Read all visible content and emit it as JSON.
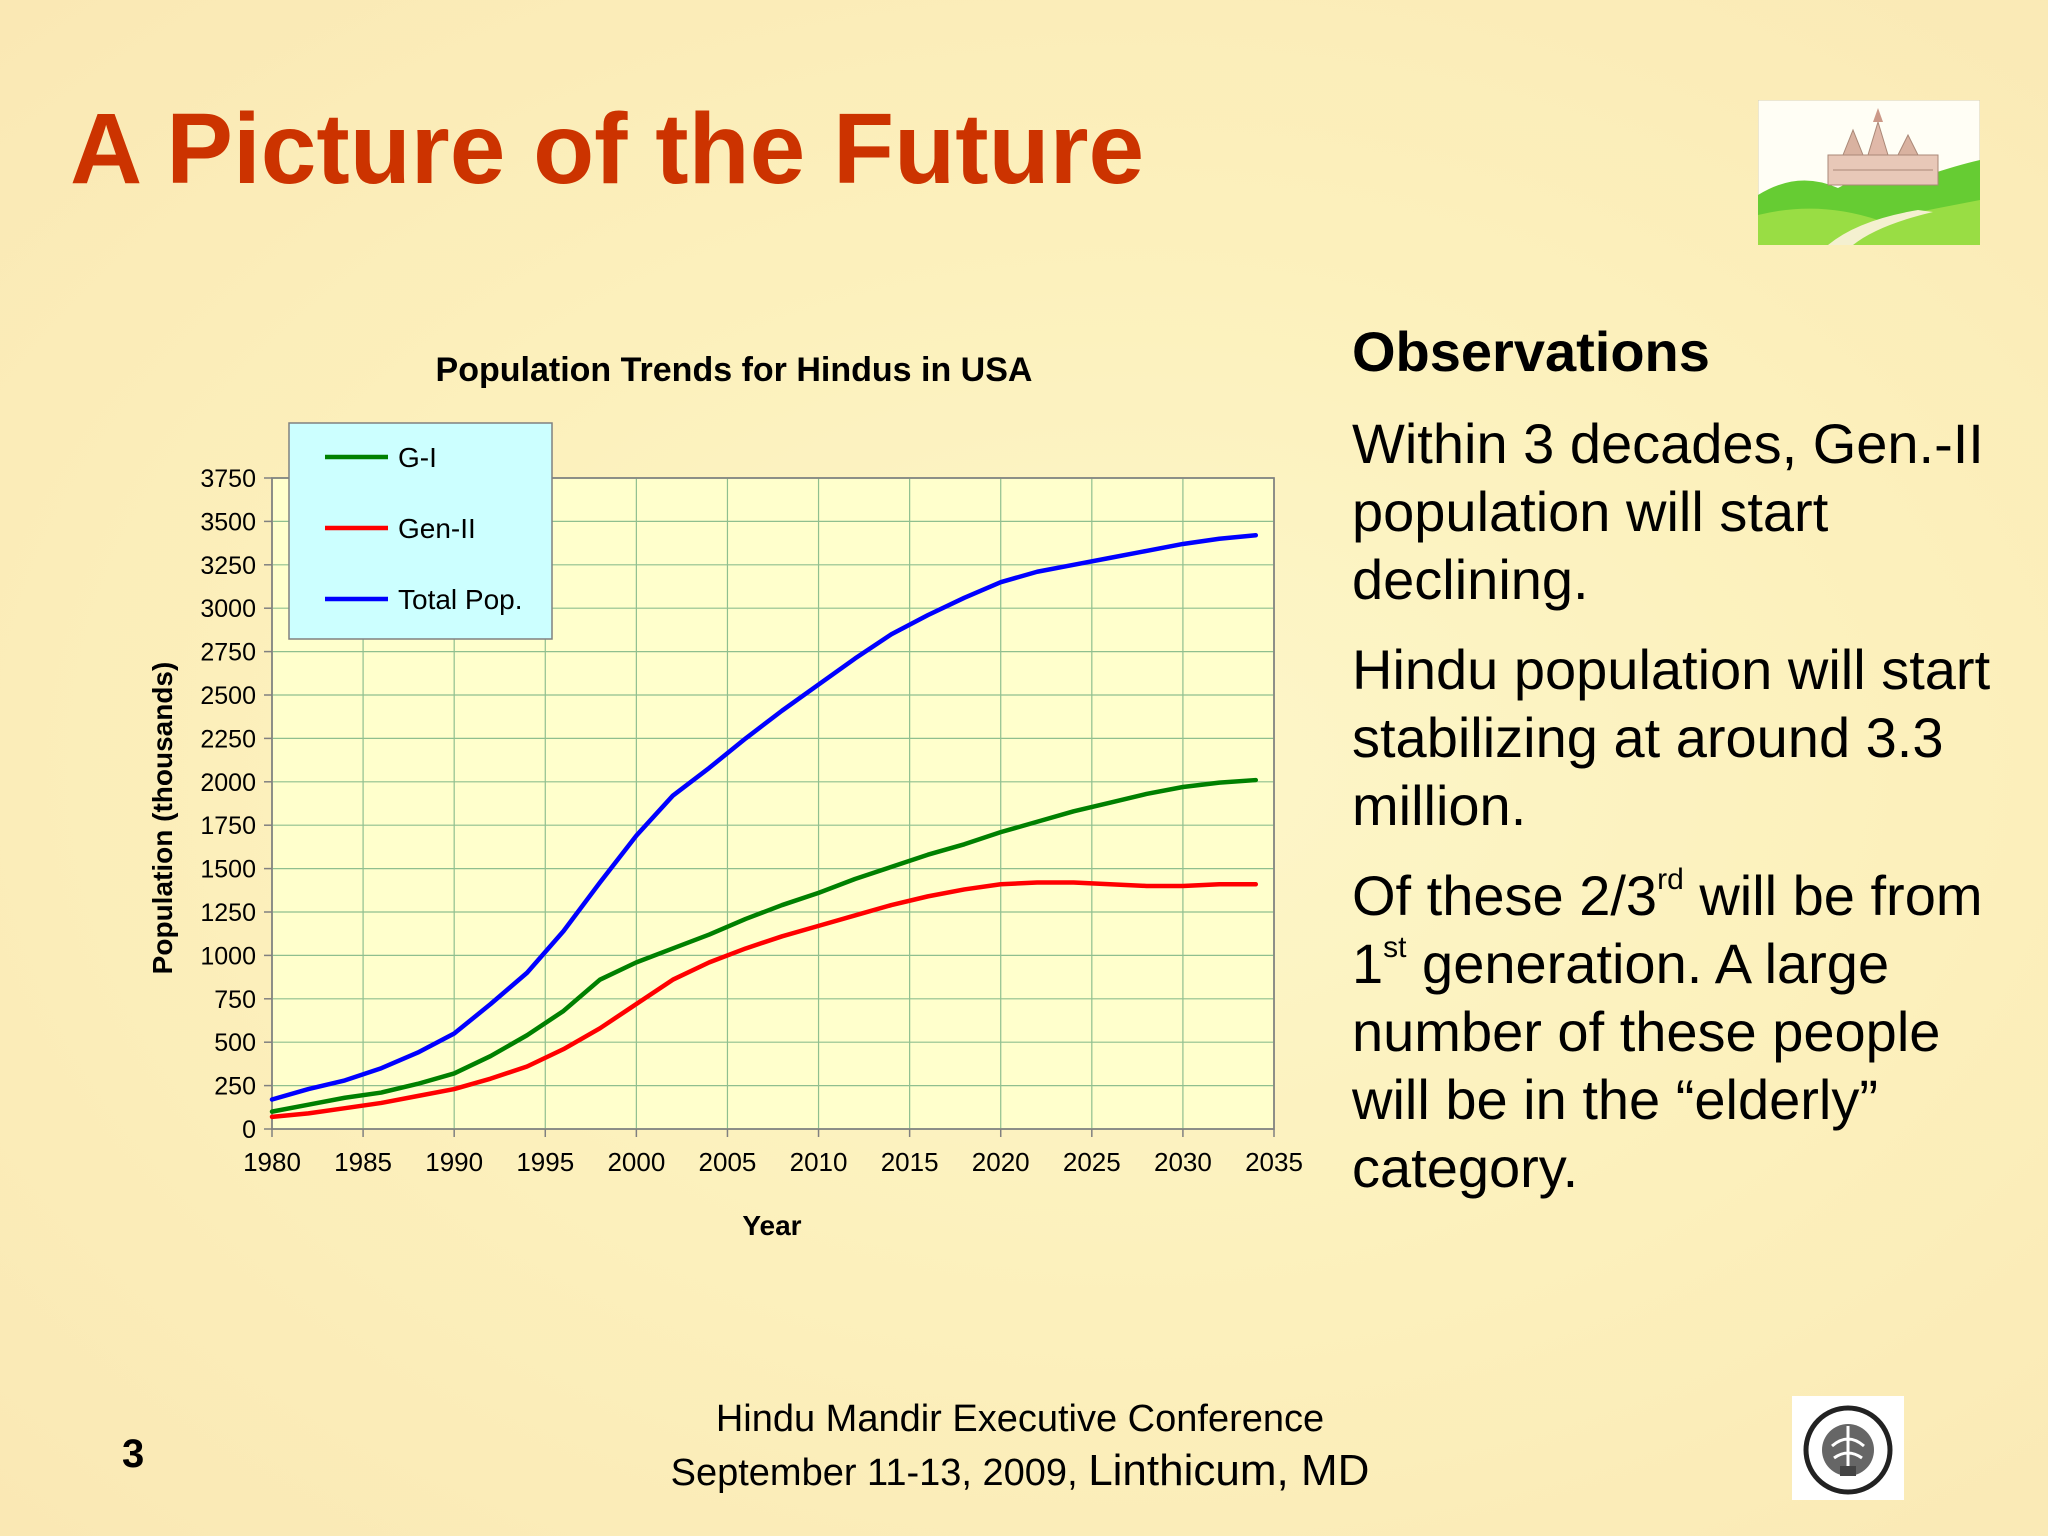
{
  "slide": {
    "title": "A Picture of the Future",
    "page_number": "3"
  },
  "observations": {
    "heading": "Observations",
    "p1": "Within 3 decades, Gen.-II population will start declining.",
    "p2": "Hindu population will start stabilizing at around 3.3 million.",
    "p3_a": "Of these 2/3",
    "p3_sup1": "rd",
    "p3_b": " will be from 1",
    "p3_sup2": "st",
    "p3_c": " generation. A large number of these people will be in the “elderly” category."
  },
  "footer": {
    "line1": "Hindu Mandir Executive Conference",
    "line2_date": "September 11-13, 2009, ",
    "line2_place": "Linthicum, MD"
  },
  "colors": {
    "title": "#cc3300",
    "plot_bg": "#ffffcc",
    "legend_bg": "#ccffff",
    "grid": "#8fbf8f"
  },
  "chart_data": {
    "type": "line",
    "title": "Population Trends for Hindus in USA",
    "xlabel": "Year",
    "ylabel": "Population (thousands)",
    "xlim": [
      1980,
      2035
    ],
    "ylim": [
      0,
      3750
    ],
    "xticks": [
      1980,
      1985,
      1990,
      1995,
      2000,
      2005,
      2010,
      2015,
      2020,
      2025,
      2030,
      2035
    ],
    "yticks": [
      0,
      250,
      500,
      750,
      1000,
      1250,
      1500,
      1750,
      2000,
      2250,
      2500,
      2750,
      3000,
      3250,
      3500,
      3750
    ],
    "grid": true,
    "legend_position": "top-left",
    "x": [
      1980,
      1982,
      1984,
      1986,
      1988,
      1990,
      1992,
      1994,
      1996,
      1998,
      2000,
      2002,
      2004,
      2006,
      2008,
      2010,
      2012,
      2014,
      2016,
      2018,
      2020,
      2022,
      2024,
      2026,
      2028,
      2030,
      2032,
      2034
    ],
    "series": [
      {
        "name": "G-I",
        "color": "#008000",
        "values": [
          100,
          140,
          180,
          210,
          260,
          320,
          420,
          540,
          680,
          860,
          960,
          1040,
          1120,
          1210,
          1290,
          1360,
          1440,
          1510,
          1580,
          1640,
          1710,
          1770,
          1830,
          1880,
          1930,
          1970,
          1995,
          2010
        ]
      },
      {
        "name": "Gen-II",
        "color": "#ff0000",
        "values": [
          70,
          90,
          120,
          150,
          190,
          230,
          290,
          360,
          460,
          580,
          720,
          860,
          960,
          1040,
          1110,
          1170,
          1230,
          1290,
          1340,
          1380,
          1410,
          1420,
          1420,
          1410,
          1400,
          1400,
          1410,
          1410
        ]
      },
      {
        "name": "Total Pop.",
        "color": "#0000ff",
        "values": [
          170,
          230,
          280,
          350,
          440,
          550,
          720,
          900,
          1140,
          1420,
          1690,
          1920,
          2080,
          2250,
          2410,
          2560,
          2710,
          2850,
          2960,
          3060,
          3150,
          3210,
          3250,
          3290,
          3330,
          3370,
          3400,
          3420
        ]
      }
    ]
  }
}
